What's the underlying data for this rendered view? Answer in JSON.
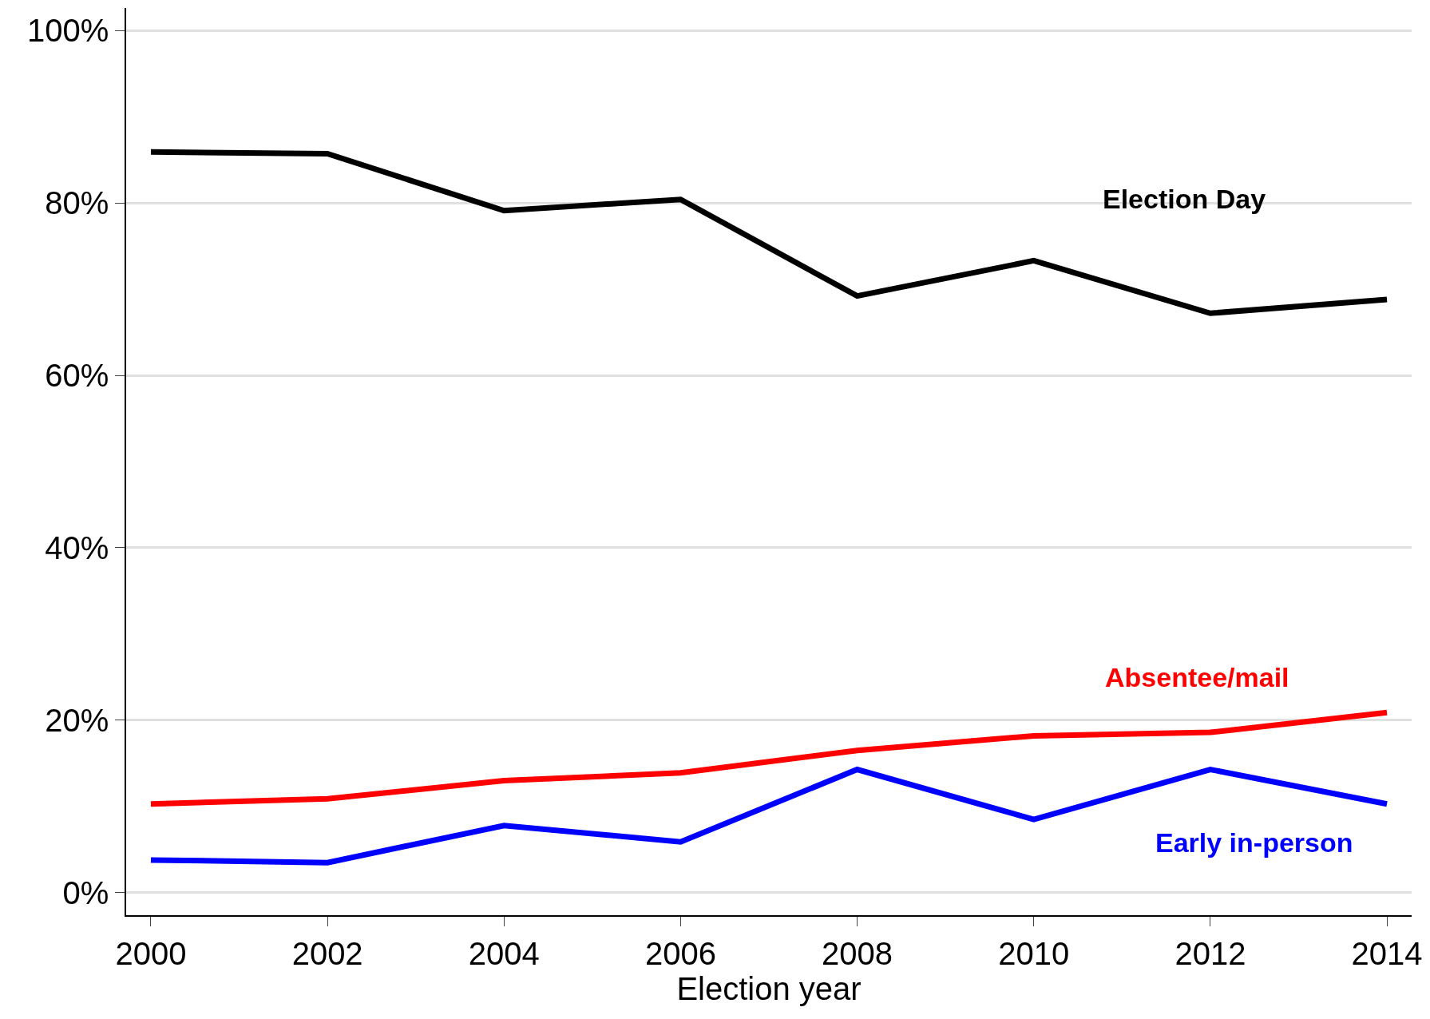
{
  "chart_data": {
    "type": "line",
    "xlabel": "Election year",
    "x": [
      2000,
      2002,
      2004,
      2006,
      2008,
      2010,
      2012,
      2014
    ],
    "series": [
      {
        "name": "Election Day",
        "color": "#000000",
        "values": [
          85.9,
          85.7,
          79.1,
          80.4,
          69.2,
          73.3,
          67.2,
          68.8
        ]
      },
      {
        "name": "Absentee/mail",
        "color": "#ff0000",
        "values": [
          10.3,
          10.9,
          13.0,
          13.9,
          16.5,
          18.2,
          18.6,
          20.9
        ]
      },
      {
        "name": "Early in-person",
        "color": "#0000ff",
        "values": [
          3.8,
          3.5,
          7.8,
          5.9,
          14.3,
          8.5,
          14.3,
          10.3
        ]
      }
    ],
    "xlim": [
      1999.72,
      2014.28
    ],
    "xticks": [
      2000,
      2002,
      2004,
      2006,
      2008,
      2010,
      2012,
      2014
    ],
    "ylim": [
      -2.6,
      102.6
    ],
    "yticks": [
      {
        "value": 0,
        "label": "0%"
      },
      {
        "value": 20,
        "label": "20%"
      },
      {
        "value": 40,
        "label": "40%"
      },
      {
        "value": 60,
        "label": "60%"
      },
      {
        "value": 80,
        "label": "80%"
      },
      {
        "value": 100,
        "label": "100%"
      }
    ],
    "grid": "y",
    "legend": false,
    "marker": "none",
    "line_style": "solid"
  }
}
